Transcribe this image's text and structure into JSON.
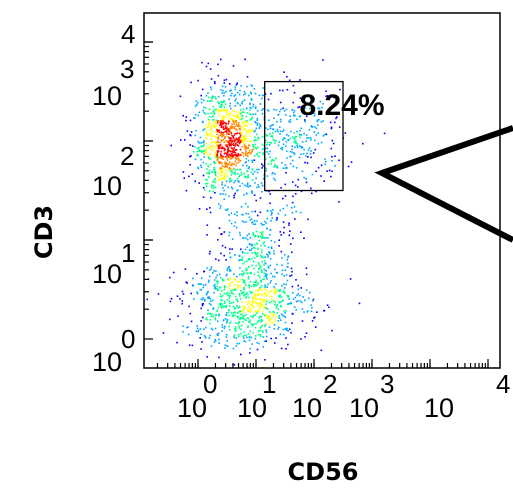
{
  "chart_data": {
    "type": "scatter",
    "subtype": "flow-cytometry-density-dot-plot",
    "xlabel": "CD56",
    "ylabel": "CD3",
    "x_scale": "log",
    "y_scale": "log",
    "x_tick_labels": [
      {
        "base": "10",
        "exp": "0"
      },
      {
        "base": "10",
        "exp": "1"
      },
      {
        "base": "10",
        "exp": "2"
      },
      {
        "base": "10",
        "exp": "3"
      },
      {
        "base": "10",
        "exp": "4"
      }
    ],
    "y_tick_labels": [
      {
        "base": "10",
        "exp": "0"
      },
      {
        "base": "10",
        "exp": "1"
      },
      {
        "base": "10",
        "exp": "2"
      },
      {
        "base": "10",
        "exp": "3"
      },
      {
        "base": "",
        "exp": "4"
      }
    ],
    "gate": {
      "label": "8.24%",
      "percent": 8.24,
      "x_range_decades": [
        1.15,
        2.5
      ],
      "y_range_decades": [
        1.5,
        2.6
      ]
    },
    "populations": [
      {
        "name": "",
        "center_decades": [
          0.5,
          2.0
        ],
        "spread_decades": [
          0.3,
          0.28
        ],
        "weight": 0.42
      },
      {
        "name": "",
        "center_decades": [
          1.6,
          2.0
        ],
        "spread_decades": [
          0.45,
          0.25
        ],
        "weight": 0.14
      },
      {
        "name": "",
        "center_decades": [
          0.8,
          0.35
        ],
        "spread_decades": [
          0.55,
          0.22
        ],
        "weight": 0.32
      },
      {
        "name": "",
        "center_decades": [
          1.05,
          0.95
        ],
        "spread_decades": [
          0.3,
          0.3
        ],
        "weight": 0.12
      }
    ],
    "color_scale": [
      "#0000ff",
      "#00aaff",
      "#00ff88",
      "#ffff00",
      "#ff8800",
      "#ff0000"
    ],
    "grid": false
  }
}
